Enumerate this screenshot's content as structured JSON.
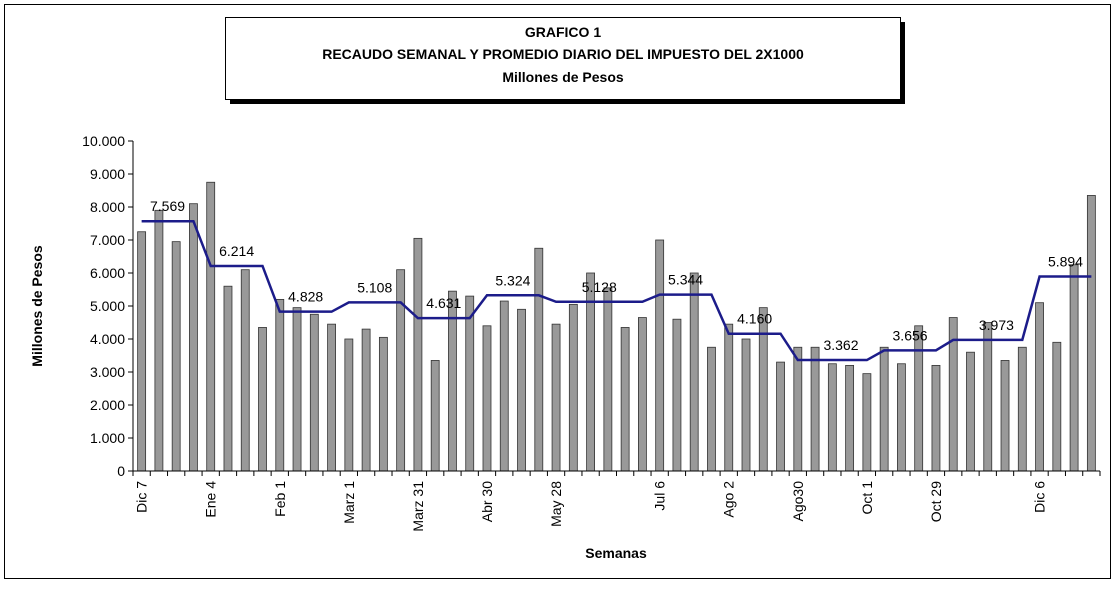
{
  "chart_data": {
    "type": "bar",
    "title": "GRAFICO 1",
    "subtitle": "RECAUDO SEMANAL Y PROMEDIO DIARIO DEL IMPUESTO DEL 2X1000",
    "units": "Millones de Pesos",
    "y_label": "Millones de Pesos",
    "x_label": "Semanas",
    "categories": [
      "Dic 7",
      null,
      null,
      null,
      "Ene 4",
      null,
      null,
      null,
      "Feb 1",
      null,
      null,
      null,
      "Marz 1",
      null,
      null,
      null,
      "Marz 31",
      null,
      null,
      null,
      "Abr 30",
      null,
      null,
      null,
      "May 28",
      null,
      null,
      null,
      null,
      null,
      "Jul 6",
      null,
      null,
      null,
      "Ago 2",
      null,
      null,
      null,
      "Ago30",
      null,
      null,
      null,
      "Oct 1",
      null,
      null,
      null,
      "Oct 29",
      null,
      null,
      null,
      null,
      null,
      "Dic 6",
      null,
      null,
      null
    ],
    "series": [
      {
        "type": "bar",
        "color": "#999999",
        "values": [
          7250,
          7900,
          6950,
          8100,
          8750,
          5600,
          6100,
          4350,
          5200,
          4950,
          4750,
          4450,
          4000,
          4300,
          4050,
          6100,
          7050,
          3350,
          5450,
          5300,
          4400,
          5150,
          4900,
          6750,
          4450,
          5050,
          6000,
          5550,
          4350,
          4650,
          7000,
          4600,
          6000,
          3750,
          4450,
          4000,
          4950,
          3300,
          3750,
          3750,
          3250,
          3200,
          2950,
          3750,
          3250,
          4400,
          3200,
          4650,
          3600,
          4500,
          3350,
          3750,
          5100,
          3900,
          6250,
          8350
        ]
      },
      {
        "type": "line",
        "color": "#1c1c8a",
        "values": [
          7569,
          7569,
          7569,
          7569,
          6214,
          6214,
          6214,
          6214,
          4828,
          4828,
          4828,
          4828,
          5108,
          5108,
          5108,
          5108,
          4631,
          4631,
          4631,
          4631,
          5324,
          5324,
          5324,
          5324,
          5128,
          5128,
          5128,
          5128,
          5128,
          5128,
          5344,
          5344,
          5344,
          5344,
          4160,
          4160,
          4160,
          4160,
          3362,
          3362,
          3362,
          3362,
          3362,
          3656,
          3656,
          3656,
          3656,
          3973,
          3973,
          3973,
          3973,
          3973,
          5894,
          5894,
          5894,
          5894
        ],
        "value_labels": [
          null,
          "7.569",
          null,
          null,
          null,
          "6.214",
          null,
          null,
          null,
          "4.828",
          null,
          null,
          null,
          "5.108",
          null,
          null,
          null,
          "4.631",
          null,
          null,
          null,
          "5.324",
          null,
          null,
          null,
          null,
          "5.128",
          null,
          null,
          null,
          null,
          "5.344",
          null,
          null,
          null,
          "4.160",
          null,
          null,
          null,
          null,
          "3.362",
          null,
          null,
          null,
          "3.656",
          null,
          null,
          null,
          null,
          "3.973",
          null,
          null,
          null,
          "5.894",
          null,
          null
        ]
      }
    ],
    "ylim": [
      0,
      10000
    ],
    "yticks": [
      0,
      {
        "value": 1000,
        "label": "1.000"
      },
      {
        "value": 2000,
        "label": "2.000"
      },
      {
        "value": 3000,
        "label": "3.000"
      },
      {
        "value": 4000,
        "label": "4.000"
      },
      {
        "value": 5000,
        "label": "5.000"
      },
      {
        "value": 6000,
        "label": "6.000"
      },
      {
        "value": 7000,
        "label": "7.000"
      },
      {
        "value": 8000,
        "label": "8.000"
      },
      {
        "value": 9000,
        "label": "9.000"
      },
      {
        "value": 10000,
        "label": "10.000"
      }
    ]
  }
}
